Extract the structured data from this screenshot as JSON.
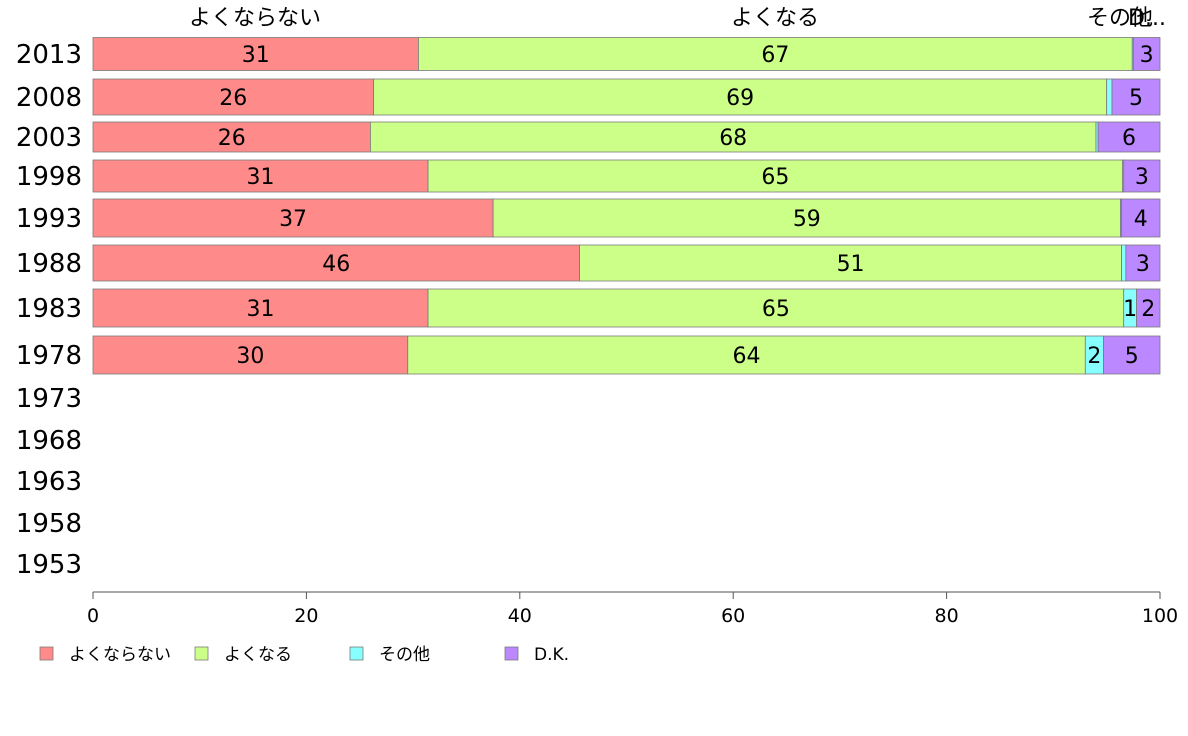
{
  "chart_data": {
    "type": "bar",
    "orientation": "horizontal",
    "stacked": true,
    "title": "",
    "xlabel": "",
    "ylabel": "",
    "xlim": [
      0,
      100
    ],
    "x_ticks": [
      "0",
      "20",
      "40",
      "60",
      "80",
      "100"
    ],
    "grid": false,
    "legend_position": "bottom-left",
    "categories": [
      "2013",
      "2008",
      "2003",
      "1998",
      "1993",
      "1988",
      "1983",
      "1978",
      "1973",
      "1968",
      "1963",
      "1958",
      "1953"
    ],
    "series": [
      {
        "name": "よくならない",
        "color": "#ff8a8a",
        "values": [
          30.5,
          26.3,
          26.0,
          31.4,
          37.5,
          45.6,
          31.4,
          29.5,
          null,
          null,
          null,
          null,
          null
        ],
        "labels": [
          "31",
          "26",
          "26",
          "31",
          "37",
          "46",
          "31",
          "30",
          "",
          "",
          "",
          "",
          ""
        ]
      },
      {
        "name": "よくなる",
        "color": "#ccff88",
        "values": [
          66.9,
          68.7,
          68.0,
          65.1,
          58.8,
          50.8,
          65.2,
          63.5,
          null,
          null,
          null,
          null,
          null
        ],
        "labels": [
          "67",
          "69",
          "68",
          "65",
          "59",
          "51",
          "65",
          "64",
          "",
          "",
          "",
          "",
          ""
        ]
      },
      {
        "name": "その他",
        "color": "#88ffff",
        "values": [
          0.1,
          0.5,
          0.2,
          0.1,
          0.1,
          0.4,
          1.2,
          1.7,
          null,
          null,
          null,
          null,
          null
        ],
        "labels": [
          "",
          "",
          "",
          "",
          "",
          "",
          "1",
          "2",
          "",
          "",
          "",
          "",
          ""
        ]
      },
      {
        "name": "D.K.",
        "color": "#bb88ff",
        "values": [
          2.5,
          4.5,
          5.8,
          3.4,
          3.6,
          3.2,
          2.2,
          5.3,
          null,
          null,
          null,
          null,
          null
        ],
        "labels": [
          "3",
          "5",
          "6",
          "3",
          "4",
          "3",
          "2",
          "5",
          "",
          "",
          "",
          "",
          ""
        ]
      }
    ],
    "top_labels": [
      "よくならない",
      "よくなる",
      "その他",
      "D..."
    ]
  }
}
